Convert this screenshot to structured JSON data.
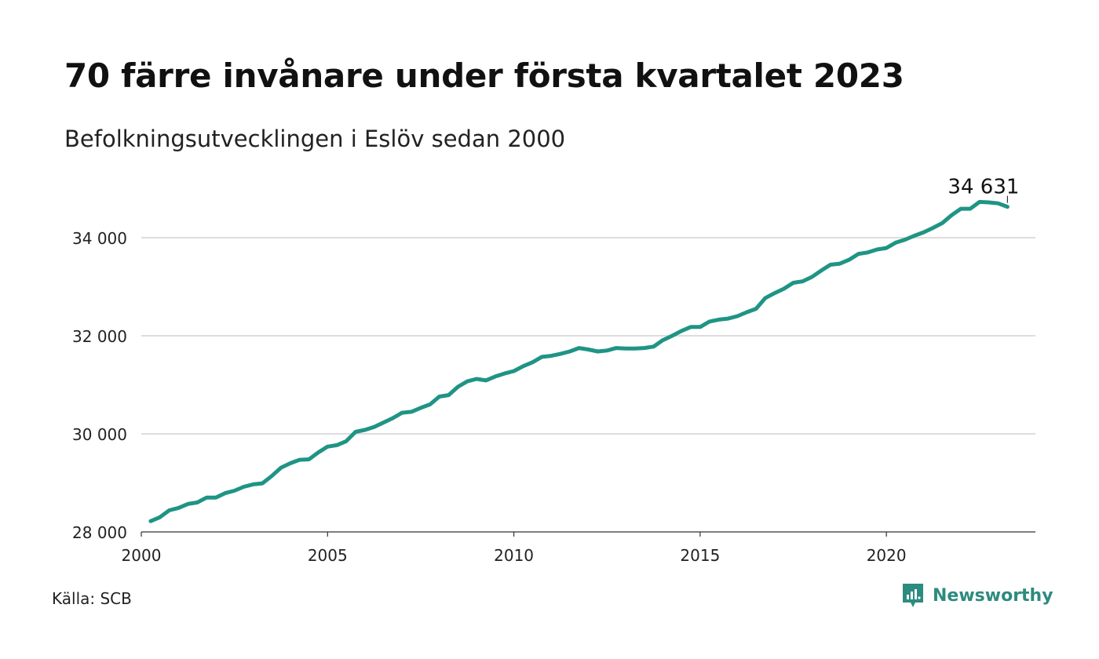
{
  "header": {
    "title": "70 färre invånare under första kvartalet 2023",
    "subtitle": "Befolkningsutvecklingen i Eslöv sedan 2000"
  },
  "footer": {
    "source": "Källa: SCB",
    "brand": "Newsworthy"
  },
  "colors": {
    "line": "#1f9485",
    "grid": "#dddddd",
    "brand": "#2e8b7f"
  },
  "chart_data": {
    "type": "line",
    "title": "70 färre invånare under första kvartalet 2023",
    "subtitle": "Befolkningsutvecklingen i Eslöv sedan 2000",
    "xlabel": "",
    "ylabel": "",
    "xlim": [
      2000,
      2024
    ],
    "ylim": [
      28000,
      35200
    ],
    "x_ticks": [
      2000,
      2005,
      2010,
      2015,
      2020
    ],
    "x_tick_labels": [
      "2000",
      "2005",
      "2010",
      "2015",
      "2020"
    ],
    "y_ticks": [
      28000,
      30000,
      32000,
      34000
    ],
    "y_tick_labels": [
      "28 000",
      "30 000",
      "32 000",
      "34 000"
    ],
    "grid": "horizontal",
    "legend": "none",
    "end_label": "34 631",
    "series": [
      {
        "x": [
          2000.25,
          2000.5,
          2000.75,
          2001.0,
          2001.25,
          2001.5,
          2001.75,
          2002.0,
          2002.25,
          2002.5,
          2002.75,
          2003.0,
          2003.25,
          2003.5,
          2003.75,
          2004.0,
          2004.25,
          2004.5,
          2004.75,
          2005.0,
          2005.25,
          2005.5,
          2005.75,
          2006.0,
          2006.25,
          2006.5,
          2006.75,
          2007.0,
          2007.25,
          2007.5,
          2007.75,
          2008.0,
          2008.25,
          2008.5,
          2008.75,
          2009.0,
          2009.25,
          2009.5,
          2009.75,
          2010.0,
          2010.25,
          2010.5,
          2010.75,
          2011.0,
          2011.25,
          2011.5,
          2011.75,
          2012.0,
          2012.25,
          2012.5,
          2012.75,
          2013.0,
          2013.25,
          2013.5,
          2013.75,
          2014.0,
          2014.25,
          2014.5,
          2014.75,
          2015.0,
          2015.25,
          2015.5,
          2015.75,
          2016.0,
          2016.25,
          2016.5,
          2016.75,
          2017.0,
          2017.25,
          2017.5,
          2017.75,
          2018.0,
          2018.25,
          2018.5,
          2018.75,
          2019.0,
          2019.25,
          2019.5,
          2019.75,
          2020.0,
          2020.25,
          2020.5,
          2020.75,
          2021.0,
          2021.25,
          2021.5,
          2021.75,
          2022.0,
          2022.25,
          2022.5,
          2022.75,
          2023.0,
          2023.25
        ],
        "values": [
          28220,
          28300,
          28440,
          28490,
          28570,
          28600,
          28700,
          28700,
          28790,
          28840,
          28920,
          28970,
          28990,
          29140,
          29310,
          29400,
          29470,
          29480,
          29620,
          29740,
          29770,
          29850,
          30040,
          30080,
          30140,
          30230,
          30320,
          30430,
          30450,
          30530,
          30600,
          30760,
          30790,
          30960,
          31070,
          31120,
          31090,
          31170,
          31230,
          31280,
          31380,
          31460,
          31570,
          31590,
          31630,
          31680,
          31750,
          31720,
          31680,
          31700,
          31750,
          31740,
          31740,
          31750,
          31780,
          31910,
          32000,
          32100,
          32180,
          32180,
          32290,
          32330,
          32350,
          32400,
          32480,
          32550,
          32770,
          32870,
          32960,
          33080,
          33110,
          33200,
          33330,
          33450,
          33470,
          33550,
          33670,
          33700,
          33760,
          33790,
          33900,
          33960,
          34040,
          34110,
          34200,
          34300,
          34460,
          34590,
          34590,
          34730,
          34720,
          34701,
          34631
        ]
      }
    ]
  }
}
